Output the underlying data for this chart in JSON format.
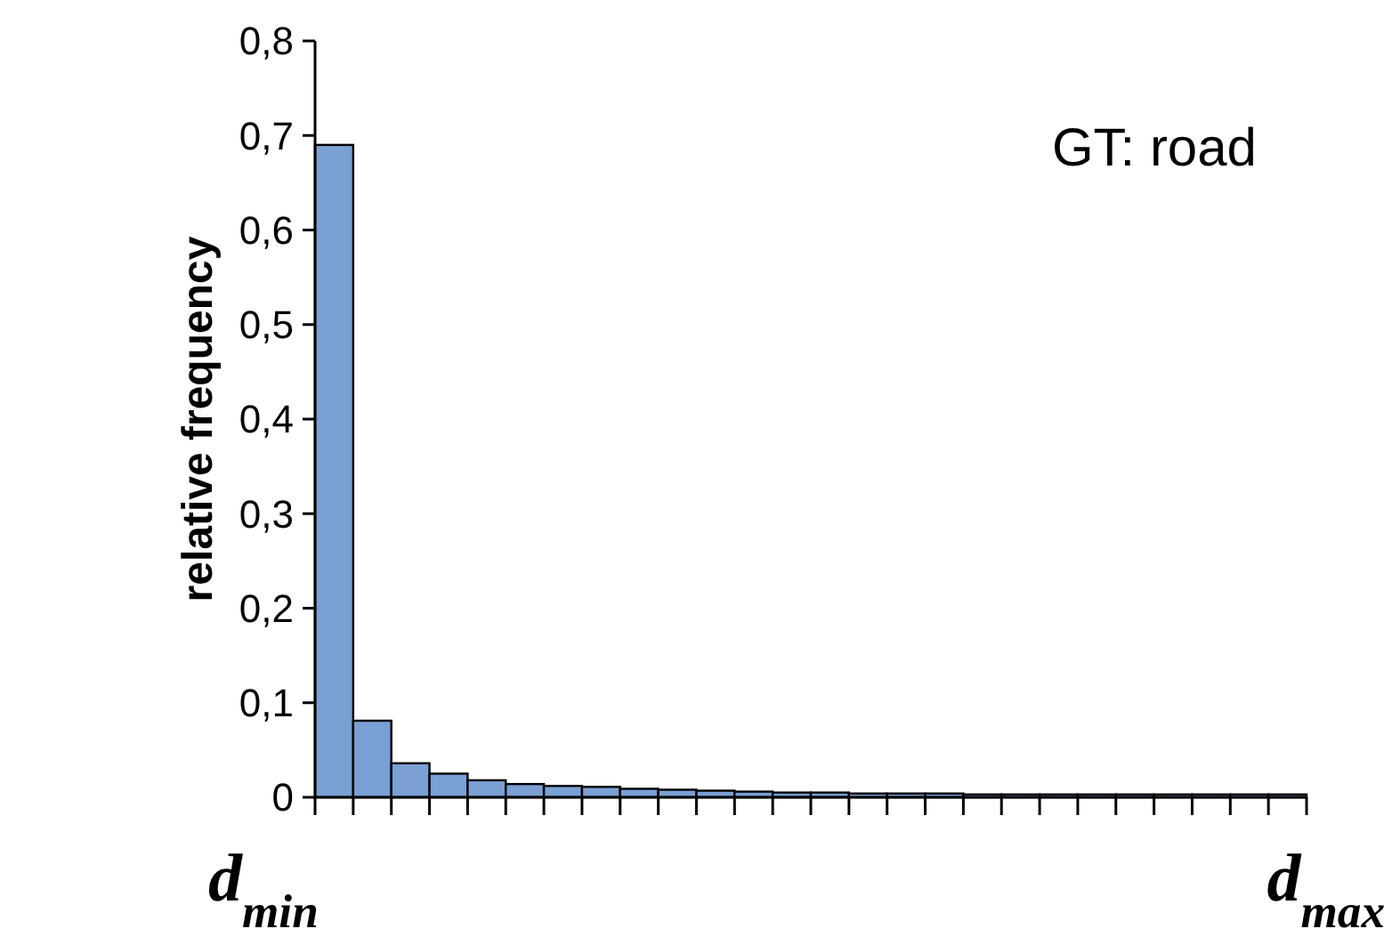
{
  "chart_data": {
    "type": "bar",
    "ylabel": "relative frequency",
    "annotations": [
      "GT: road",
      "d$_{min}$",
      "d$_{max}$"
    ],
    "categories": [
      null,
      null,
      null,
      null,
      null,
      null,
      null,
      null,
      null,
      null,
      null,
      null,
      null,
      null,
      null,
      null,
      null,
      null,
      null,
      null,
      null,
      null,
      null,
      null,
      null,
      null
    ],
    "values": [
      0.69,
      0.081,
      0.036,
      0.025,
      0.018,
      0.014,
      0.012,
      0.011,
      0.009,
      0.008,
      0.007,
      0.006,
      0.005,
      0.005,
      0.004,
      0.004,
      0.004,
      0.003,
      0.003,
      0.003,
      0.003,
      0.003,
      0.003,
      0.003,
      0.003,
      0.003
    ],
    "color": "#7aa0d4",
    "ylim": [
      0,
      0.8
    ],
    "yticks": [
      0,
      {
        "value": 0.1,
        "label": "0,1"
      },
      {
        "value": 0.2,
        "label": "0,2"
      },
      {
        "value": 0.3,
        "label": "0,3"
      },
      {
        "value": 0.4,
        "label": "0,4"
      },
      {
        "value": 0.5,
        "label": "0,5"
      },
      {
        "value": 0.6,
        "label": "0,6"
      },
      {
        "value": 0.7,
        "label": "0,7"
      },
      {
        "value": 0.8,
        "label": "0,8"
      }
    ],
    "grid": false
  }
}
